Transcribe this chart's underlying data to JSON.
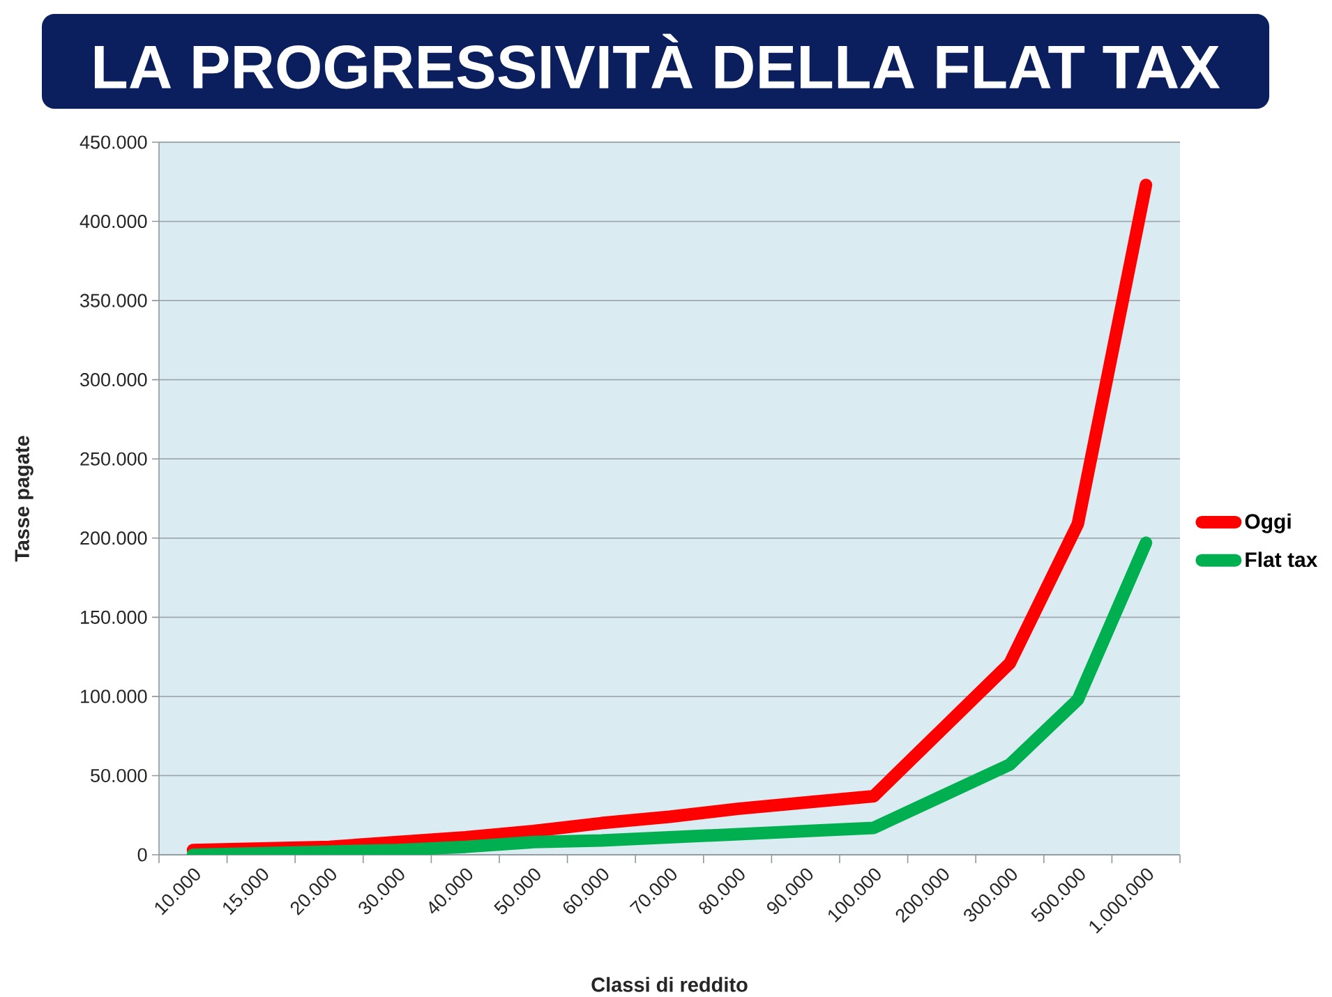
{
  "chart_data": {
    "type": "line",
    "title": "LA PROGRESSIVITÀ DELLA FLAT TAX",
    "xlabel": "Classi di reddito",
    "ylabel": "Tasse pagate",
    "categories": [
      "10.000",
      "15.000",
      "20.000",
      "30.000",
      "40.000",
      "50.000",
      "60.000",
      "70.000",
      "80.000",
      "90.000",
      "100.000",
      "200.000",
      "300.000",
      "500.000",
      "1.000.000"
    ],
    "series": [
      {
        "name": "Oggi",
        "color": "#ff0000",
        "values": [
          3000,
          4000,
          5000,
          8000,
          11000,
          15000,
          20000,
          24000,
          29000,
          33000,
          37000,
          79000,
          121000,
          209000,
          423000
        ]
      },
      {
        "name": "Flat tax",
        "color": "#00b050",
        "values": [
          0,
          1000,
          2000,
          3000,
          5000,
          8000,
          9000,
          11000,
          13000,
          15000,
          17000,
          37000,
          57000,
          98000,
          197000
        ]
      }
    ],
    "ylim": [
      0,
      450000
    ],
    "yticks": [
      0,
      {
        "value": 50000,
        "label": "50.000"
      },
      {
        "value": 100000,
        "label": "100.000"
      },
      {
        "value": 150000,
        "label": "150.000"
      },
      {
        "value": 200000,
        "label": "200.000"
      },
      {
        "value": 250000,
        "label": "250.000"
      },
      {
        "value": 300000,
        "label": "300.000"
      },
      {
        "value": 350000,
        "label": "350.000"
      },
      {
        "value": 400000,
        "label": "400.000"
      },
      {
        "value": 450000,
        "label": "450.000"
      }
    ],
    "grid": "y",
    "legend": "right"
  }
}
